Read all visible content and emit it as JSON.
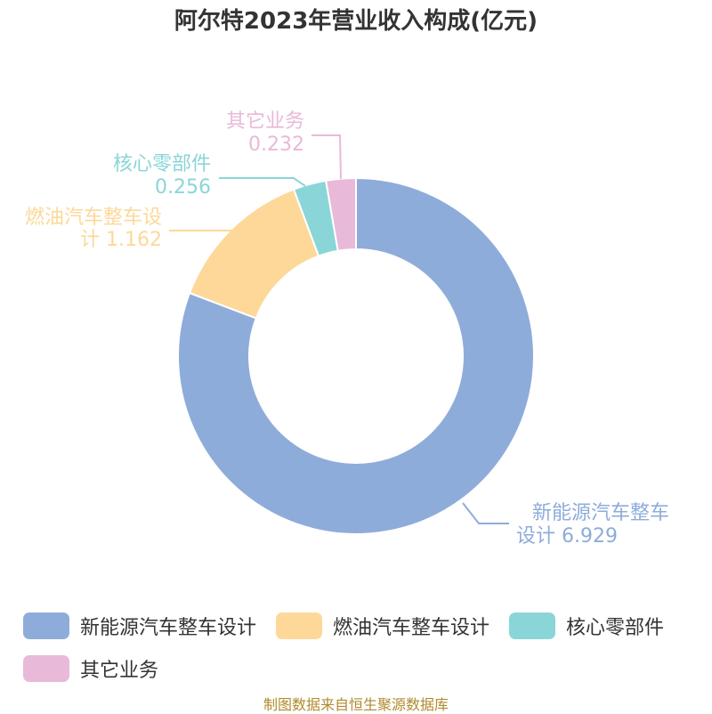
{
  "chart_data": {
    "type": "pie",
    "title": "阿尔特2023年营业收入构成(亿元)",
    "donut": true,
    "series": [
      {
        "name": "新能源汽车整车设计",
        "value": 6.929,
        "color": "#8eacda",
        "label_line1": "新能源汽车整车",
        "label_line2": "设计 6.929"
      },
      {
        "name": "燃油汽车整车设计",
        "value": 1.162,
        "color": "#fdd899",
        "label_line1": "燃油汽车整车设",
        "label_line2": "计 1.162"
      },
      {
        "name": "核心零部件",
        "value": 0.256,
        "color": "#8ad5d8",
        "label_line1": "核心零部件",
        "label_line2": "0.256"
      },
      {
        "name": "其它业务",
        "value": 0.232,
        "color": "#e9b9d9",
        "label_line1": "其它业务",
        "label_line2": "0.232"
      }
    ],
    "legend_position": "bottom"
  },
  "source": "制图数据来自恒生聚源数据库"
}
